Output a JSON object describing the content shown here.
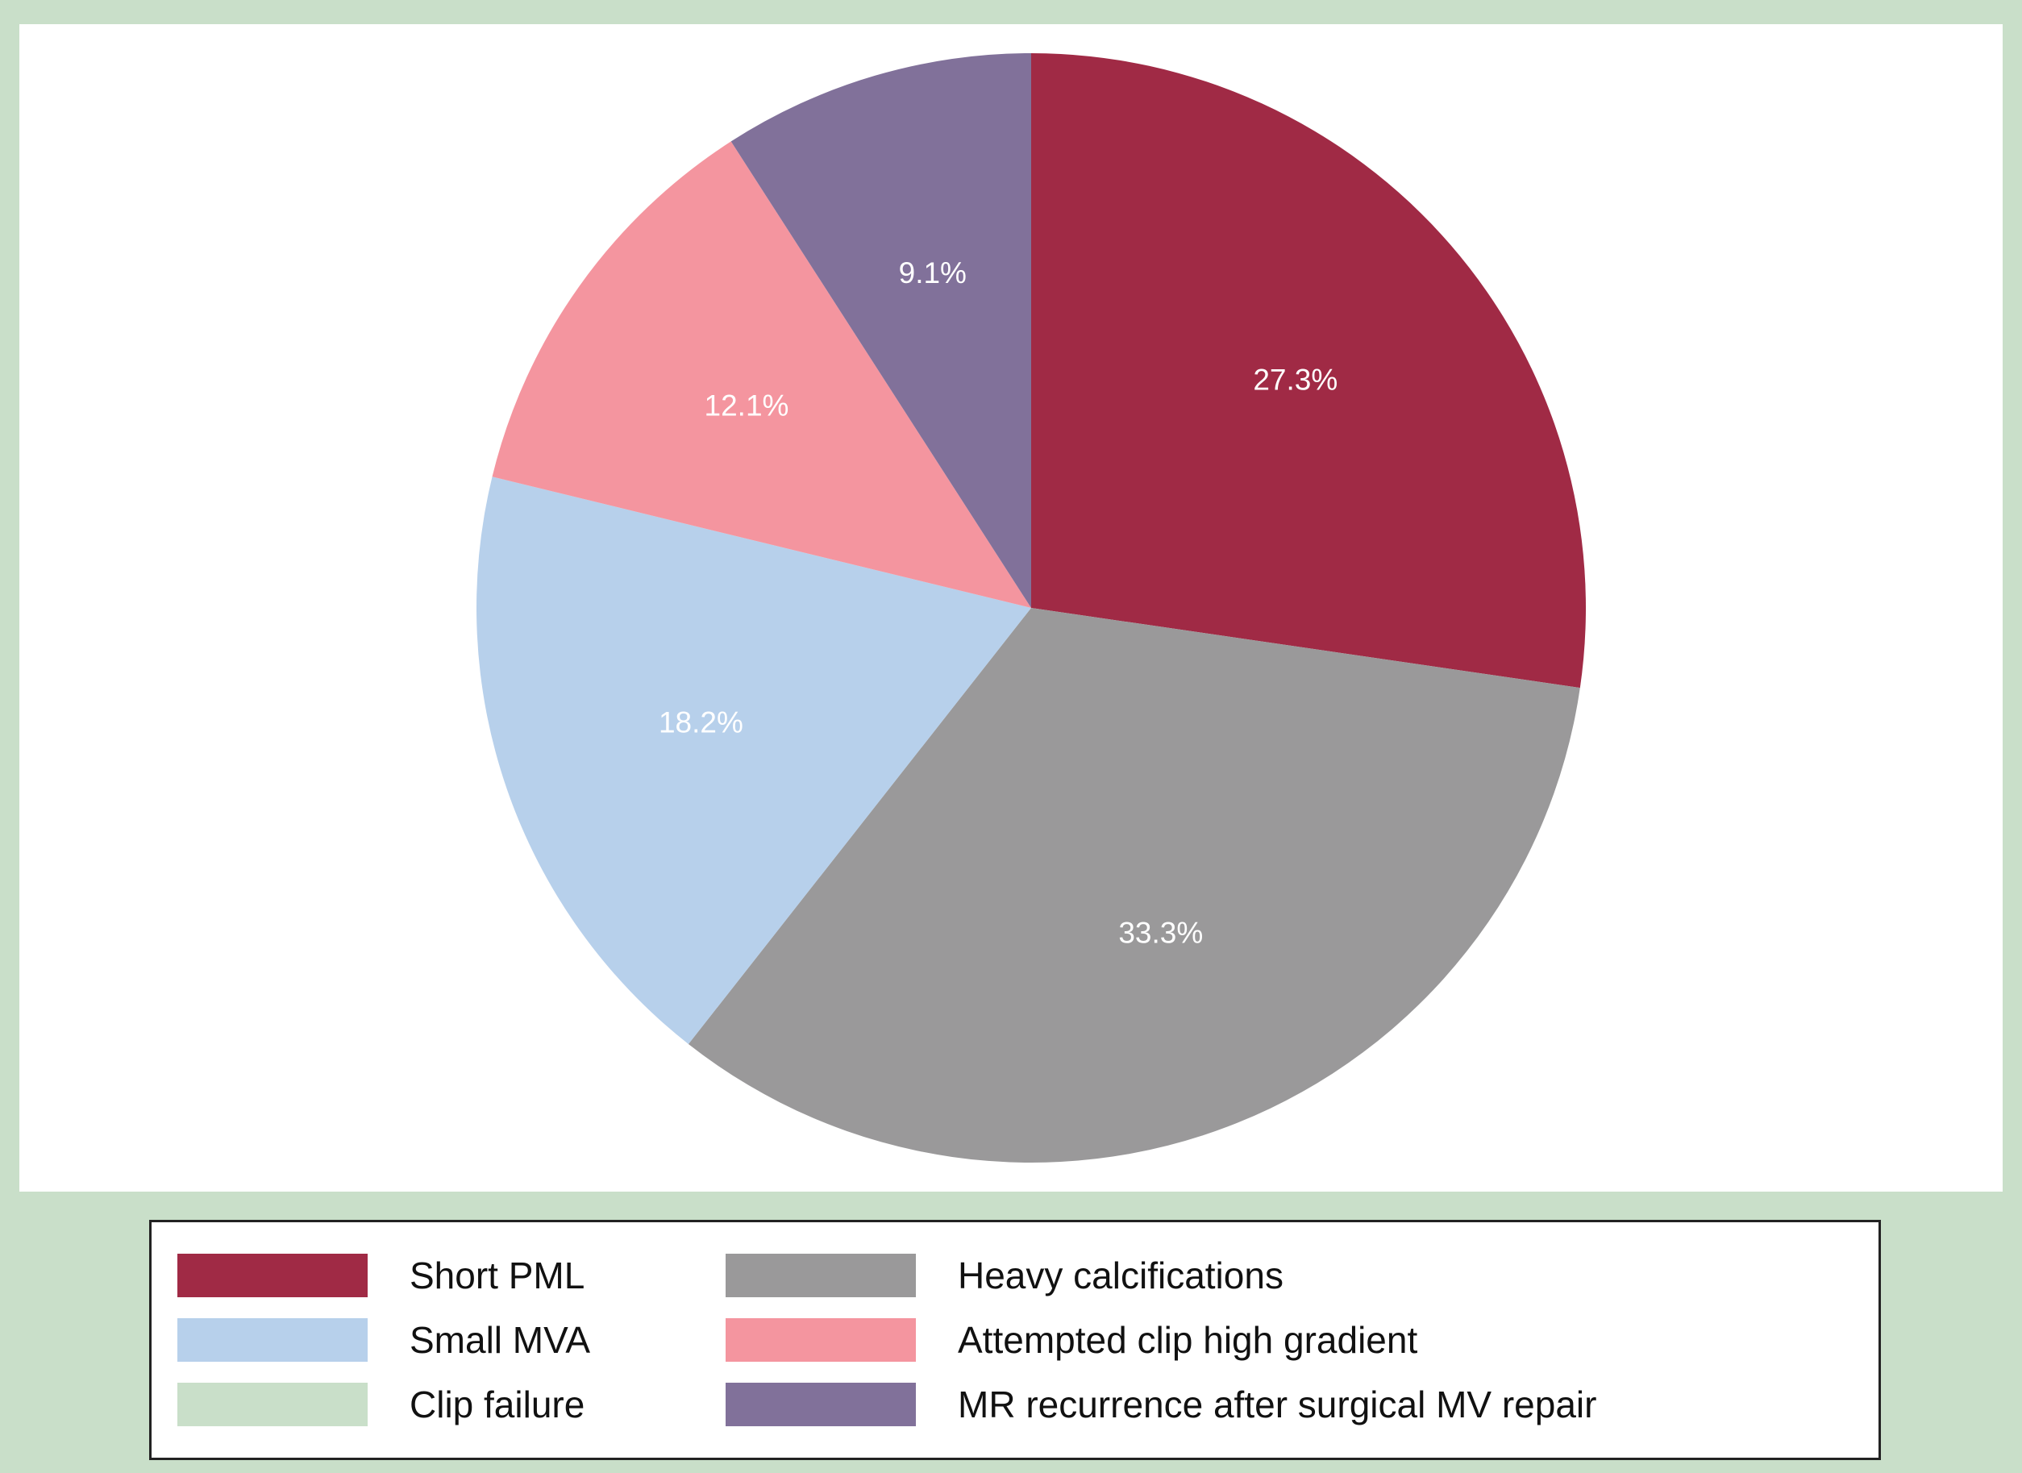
{
  "colors": {
    "frame_background": "#c9dfc9",
    "panel_background": "#ffffff",
    "legend_border": "#222222",
    "slice_label_text": "#ffffff"
  },
  "chart_data": {
    "type": "pie",
    "direction": "clockwise",
    "start_angle_deg": 0,
    "legend_position": "bottom",
    "label_color": "#ffffff",
    "slices": [
      {
        "label": "Short PML",
        "value": 27.3,
        "display": "27.3%",
        "color": "#a02a45"
      },
      {
        "label": "Heavy calcifications",
        "value": 33.3,
        "display": "33.3%",
        "color": "#9a999a"
      },
      {
        "label": "Small MVA",
        "value": 18.2,
        "display": "18.2%",
        "color": "#b7d0eb"
      },
      {
        "label": "Attempted clip high gradient",
        "value": 12.1,
        "display": "12.1%",
        "color": "#f4959f"
      },
      {
        "label": "MR recurrence after surgical MV repair",
        "value": 9.1,
        "display": "9.1%",
        "color": "#81719a"
      }
    ],
    "legend_only_entries": [
      {
        "label": "Clip failure",
        "value": 0,
        "color": "#c9dfc9"
      }
    ]
  },
  "legend": {
    "columns": [
      [
        {
          "label": "Short PML",
          "color": "#a02a45"
        },
        {
          "label": "Small MVA",
          "color": "#b7d0eb"
        },
        {
          "label": "Clip failure",
          "color": "#c9dfc9"
        }
      ],
      [
        {
          "label": "Heavy calcifications",
          "color": "#9a999a"
        },
        {
          "label": "Attempted clip high gradient",
          "color": "#f4959f"
        },
        {
          "label": "MR recurrence after surgical MV repair",
          "color": "#81719a"
        }
      ]
    ]
  }
}
